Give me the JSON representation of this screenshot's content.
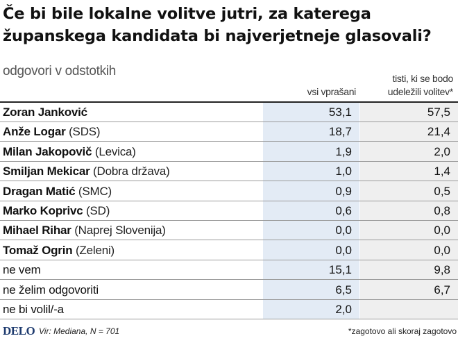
{
  "title_line1": "Če bi bile lokalne volitve jutri, za katerega",
  "title_line2": "županskega kandidata bi najverjetneje glasovali?",
  "subtitle": "odgovori v odstotkih",
  "column_headers": {
    "all": "vsi vprašani",
    "voters_line1": "tisti, ki se bodo",
    "voters_line2": "udeležili volitev*"
  },
  "rows": [
    {
      "name": "Zoran Janković",
      "party": "",
      "v1": "53,1",
      "v2": "57,5"
    },
    {
      "name": "Anže Logar",
      "party": "(SDS)",
      "v1": "18,7",
      "v2": "21,4"
    },
    {
      "name": "Milan Jakopovič",
      "party": "(Levica)",
      "v1": "1,9",
      "v2": "2,0"
    },
    {
      "name": "Smiljan Mekicar",
      "party": "(Dobra država)",
      "v1": "1,0",
      "v2": "1,4"
    },
    {
      "name": "Dragan Matić",
      "party": "(SMC)",
      "v1": "0,9",
      "v2": "0,5"
    },
    {
      "name": "Marko Koprivc",
      "party": "(SD)",
      "v1": "0,6",
      "v2": "0,8"
    },
    {
      "name": "Mihael Rihar",
      "party": "(Naprej Slovenija)",
      "v1": "0,0",
      "v2": "0,0"
    },
    {
      "name": "Tomaž Ogrin",
      "party": "(Zeleni)",
      "v1": "0,0",
      "v2": "0,0"
    },
    {
      "name": "ne vem",
      "party": "",
      "v1": "15,1",
      "v2": "9,8",
      "plain": true
    },
    {
      "name": "ne želim odgovoriti",
      "party": "",
      "v1": "6,5",
      "v2": "6,7",
      "plain": true
    },
    {
      "name": "ne bi volil/-a",
      "party": "",
      "v1": "2,0",
      "v2": "",
      "plain": true
    }
  ],
  "footer": {
    "logo": "DELO",
    "source": "Vir: Mediana, N = 701",
    "note": "*zagotovo ali skoraj zagotovo"
  },
  "colors": {
    "col1_band": "#e3ebf5",
    "col2_band": "#efefef",
    "logo": "#1d3a6e"
  },
  "chart_data": {
    "type": "table",
    "title": "Če bi bile lokalne volitve jutri, za katerega županskega kandidata bi najverjetneje glasovali?",
    "subtitle": "odgovori v odstotkih",
    "columns": [
      "vsi vprašani",
      "tisti, ki se bodo udeležili volitev*"
    ],
    "categories": [
      "Zoran Janković",
      "Anže Logar (SDS)",
      "Milan Jakopovič (Levica)",
      "Smiljan Mekicar (Dobra država)",
      "Dragan Matić (SMC)",
      "Marko Koprivc (SD)",
      "Mihael Rihar (Naprej Slovenija)",
      "Tomaž Ogrin (Zeleni)",
      "ne vem",
      "ne želim odgovoriti",
      "ne bi volil/-a"
    ],
    "series": [
      {
        "name": "vsi vprašani",
        "values": [
          53.1,
          18.7,
          1.9,
          1.0,
          0.9,
          0.6,
          0.0,
          0.0,
          15.1,
          6.5,
          2.0
        ]
      },
      {
        "name": "tisti, ki se bodo udeležili volitev*",
        "values": [
          57.5,
          21.4,
          2.0,
          1.4,
          0.5,
          0.8,
          0.0,
          0.0,
          9.8,
          6.7,
          null
        ]
      }
    ]
  }
}
